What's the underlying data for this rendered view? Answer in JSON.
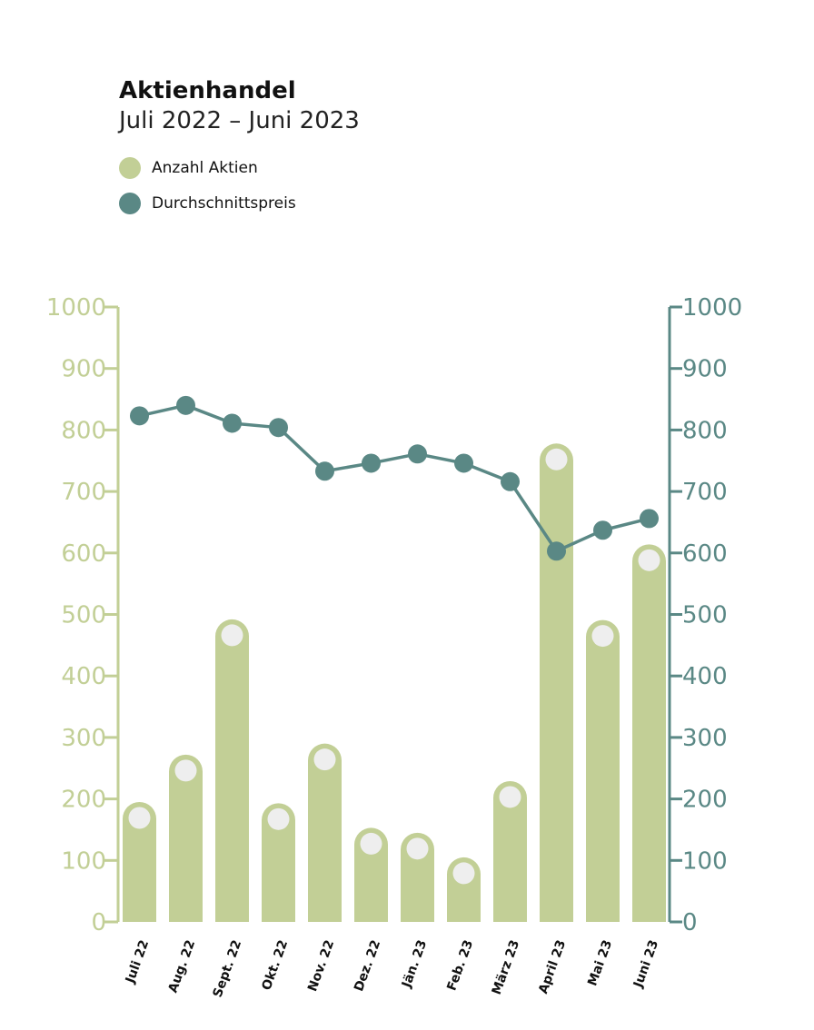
{
  "colors": {
    "bar": "#c2cf96",
    "bar_marker": "#eeeeee",
    "line": "#5a8885",
    "left_axis": "#c2cf96",
    "right_axis": "#5a8885"
  },
  "chart_data": {
    "type": "bar",
    "title": "Aktienhandel",
    "subtitle": "Juli 2022 – Juni 2023",
    "categories": [
      "Juli 22",
      "Aug. 22",
      "Sept. 22",
      "Okt. 22",
      "Nov. 22",
      "Dez. 22",
      "Jän. 23",
      "Feb. 23",
      "März 23",
      "April 23",
      "Mai 23",
      "Juni 23"
    ],
    "series": [
      {
        "name": "Anzahl Aktien",
        "type": "bar",
        "axis": "left",
        "values": [
          195,
          272,
          492,
          193,
          290,
          153,
          145,
          105,
          229,
          778,
          491,
          614
        ]
      },
      {
        "name": "Durchschnittspreis",
        "type": "line",
        "axis": "right",
        "values": [
          823,
          840,
          811,
          804,
          733,
          746,
          761,
          746,
          716,
          603,
          637,
          656
        ]
      }
    ],
    "ylim_left": [
      0,
      1000
    ],
    "ylim_right": [
      0,
      1000
    ],
    "yticks": [
      "0",
      "100",
      "200",
      "300",
      "400",
      "500",
      "600",
      "700",
      "800",
      "900",
      "1000"
    ],
    "legend_position": "top-left"
  }
}
